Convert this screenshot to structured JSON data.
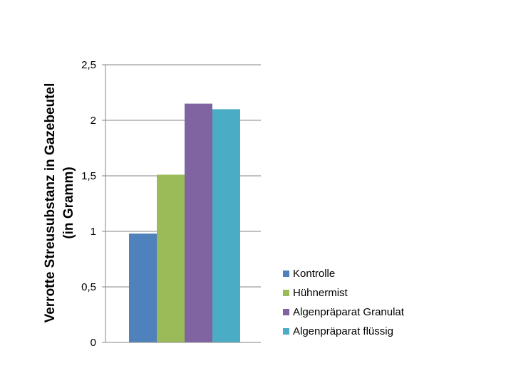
{
  "chart_data": {
    "type": "bar",
    "title": "",
    "xlabel": "",
    "ylabel_line1": "Verrotte Streusubstanz in Gazebeutel",
    "ylabel_line2": "(in Gramm)",
    "ylim": [
      0,
      2.5
    ],
    "yticks": [
      "0",
      "0,5",
      "1",
      "1,5",
      "2",
      "2,5"
    ],
    "ytick_values": [
      0,
      0.5,
      1,
      1.5,
      2,
      2.5
    ],
    "grid": true,
    "legend_position": "right",
    "series": [
      {
        "name": "Kontrolle",
        "value": 0.98,
        "color": "#4F81BD"
      },
      {
        "name": "Hühnermist",
        "value": 1.51,
        "color": "#9BBB59"
      },
      {
        "name": "Algenpräparat Granulat",
        "value": 2.15,
        "color": "#8064A2"
      },
      {
        "name": "Algenpräparat flüssig",
        "value": 2.1,
        "color": "#4BACC6"
      }
    ]
  }
}
